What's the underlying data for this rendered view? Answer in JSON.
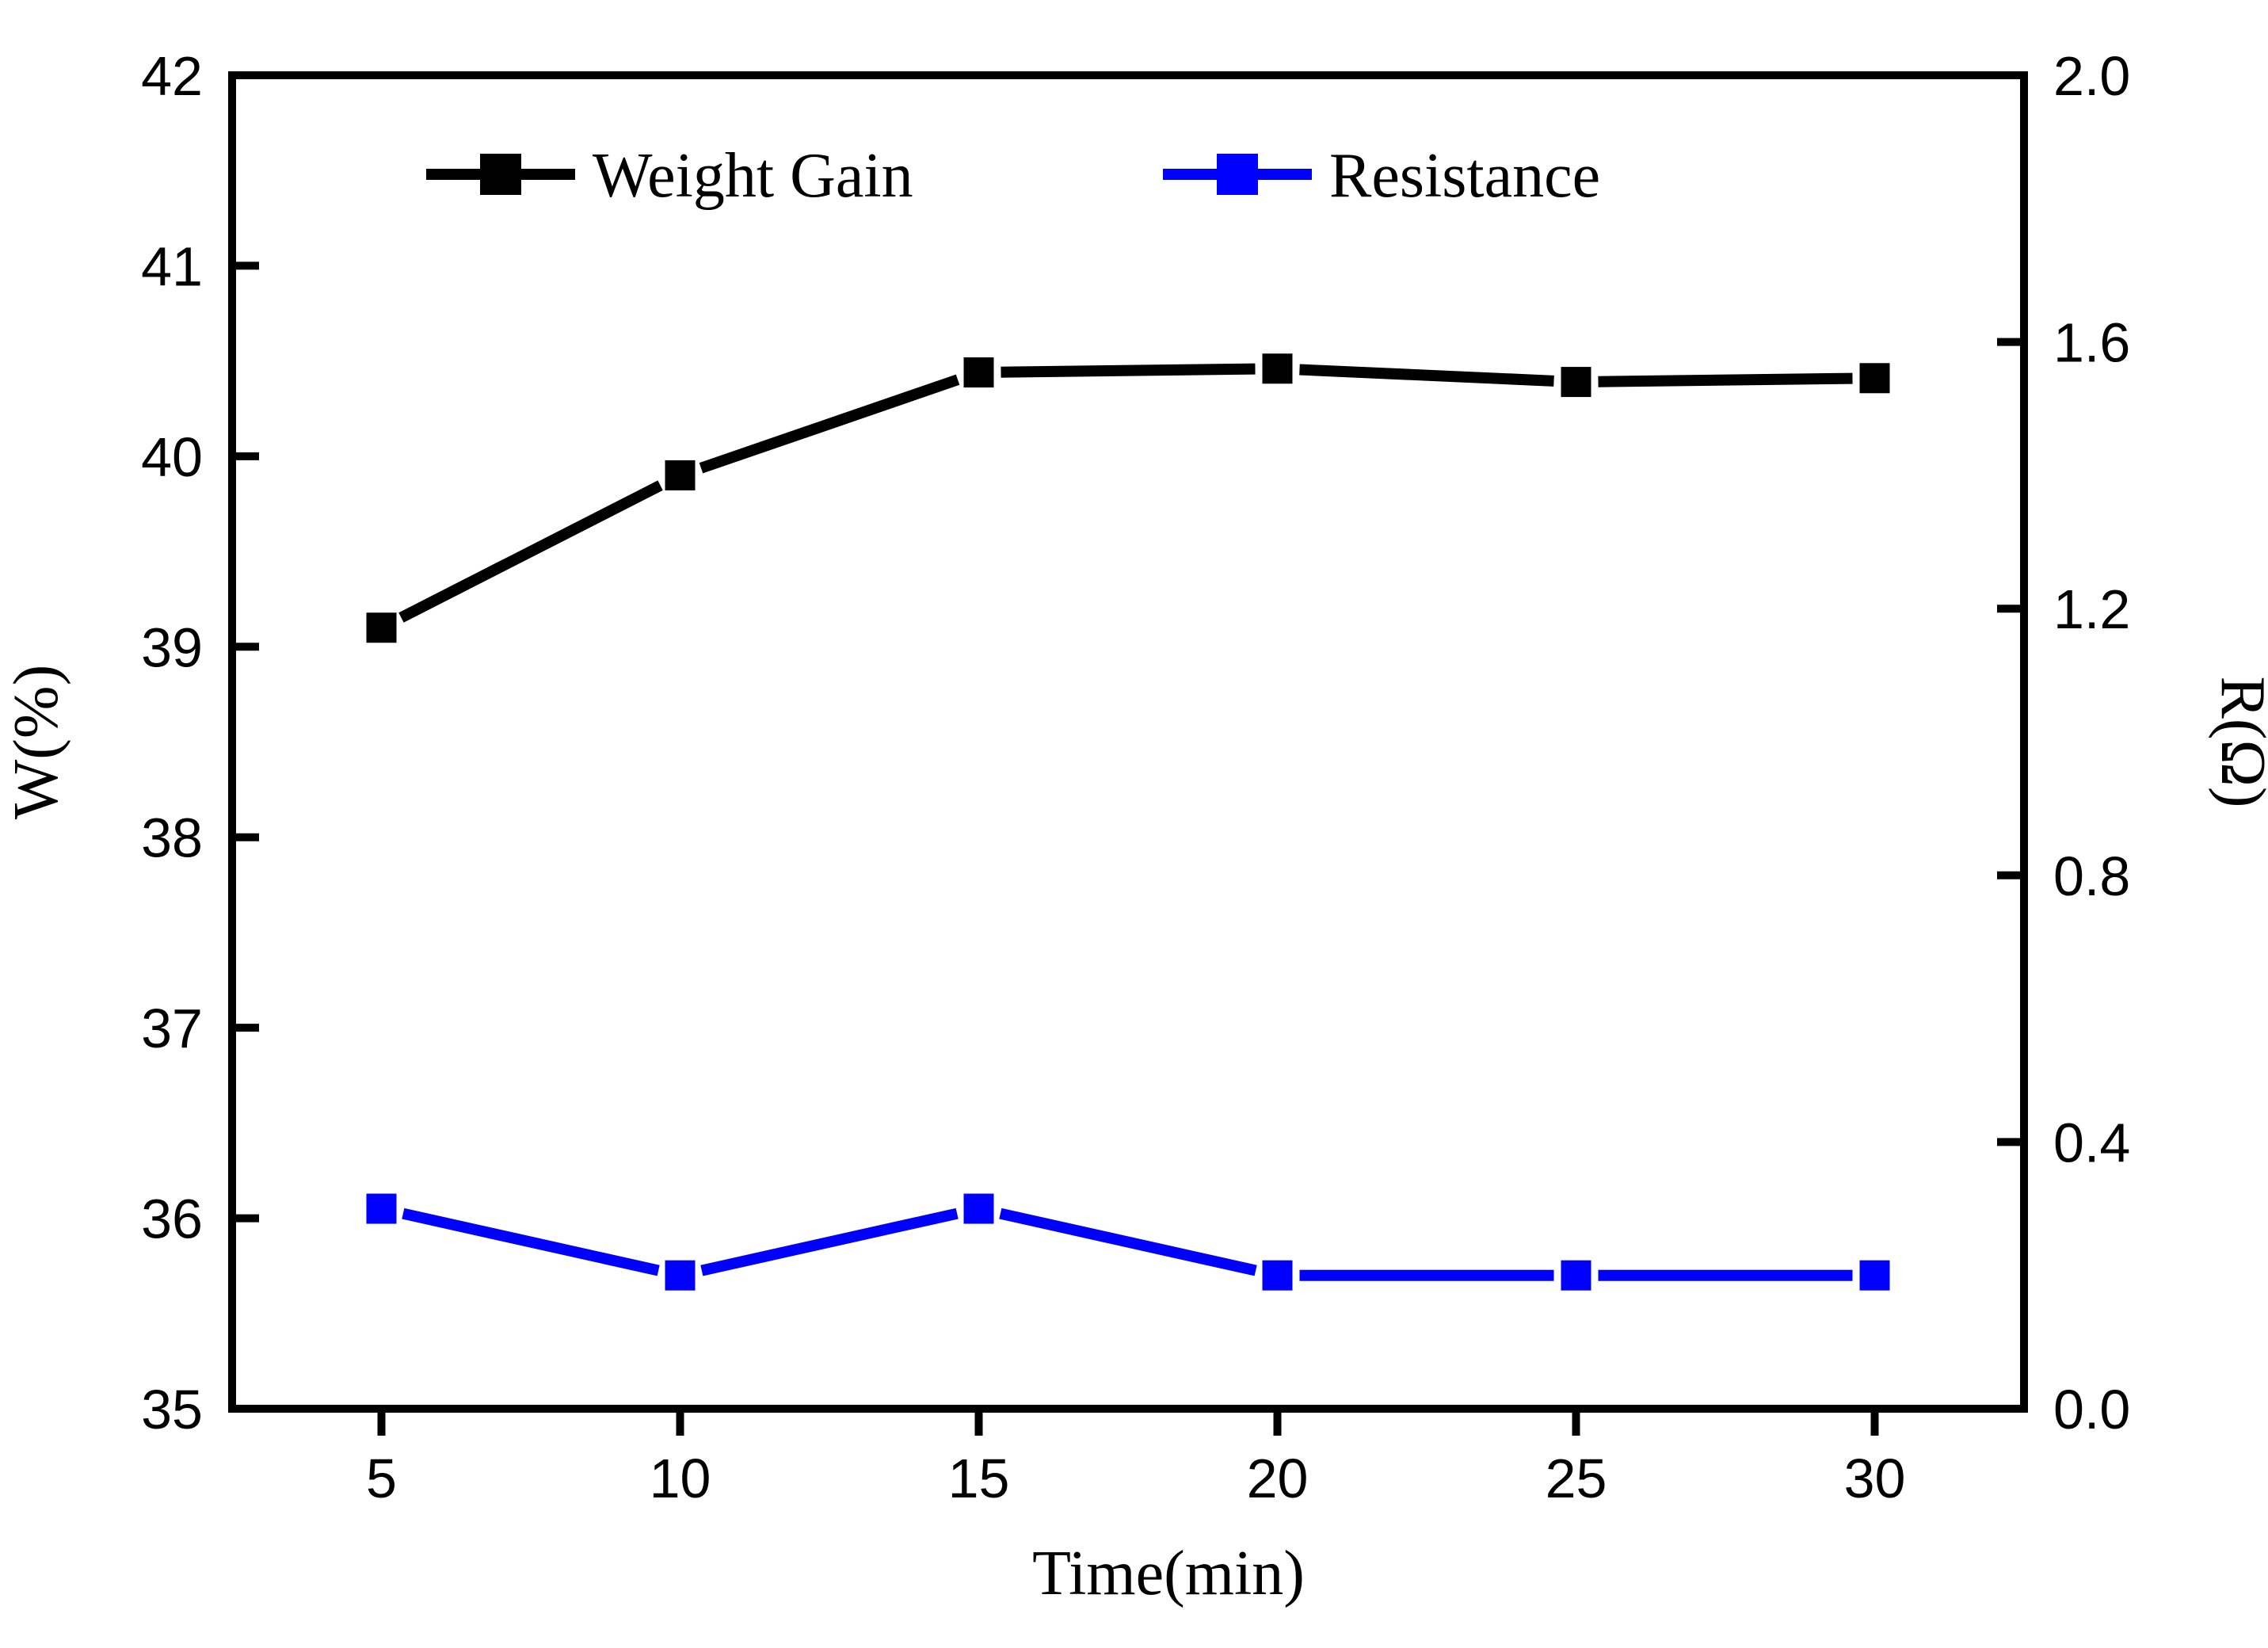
{
  "figure": {
    "background": "#ffffff",
    "frame_color": "#000000",
    "legend": [
      {
        "label": "Weight Gain",
        "color": "#000000",
        "marker": "square"
      },
      {
        "label": "Resistance",
        "color": "#0000ff",
        "marker": "square"
      }
    ]
  },
  "chart_data": {
    "type": "line",
    "x": [
      5,
      10,
      15,
      20,
      25,
      30
    ],
    "x_ticks": [
      "5",
      "10",
      "15",
      "20",
      "25",
      "30"
    ],
    "xlabel": "Time(min)",
    "grid": false,
    "legend_position": "top-inside",
    "axes": {
      "left": {
        "label": "W(%)",
        "min": 35,
        "max": 42,
        "tick_step": 1,
        "tick_labels": [
          "35",
          "36",
          "37",
          "38",
          "39",
          "40",
          "41",
          "42"
        ]
      },
      "right": {
        "label": "R(Ω)",
        "min": 0.0,
        "max": 2.0,
        "tick_step": 0.4,
        "tick_labels": [
          "0.0",
          "0.4",
          "0.8",
          "1.2",
          "1.6",
          "2.0"
        ]
      }
    },
    "series": [
      {
        "name": "Weight Gain",
        "axis": "left",
        "color": "#000000",
        "marker": "square",
        "values": [
          39.1,
          39.9,
          40.44,
          40.46,
          40.39,
          40.41
        ]
      },
      {
        "name": "Resistance",
        "axis": "right",
        "color": "#0000ff",
        "marker": "square",
        "values": [
          0.3,
          0.2,
          0.3,
          0.2,
          0.2,
          0.2
        ]
      }
    ]
  }
}
